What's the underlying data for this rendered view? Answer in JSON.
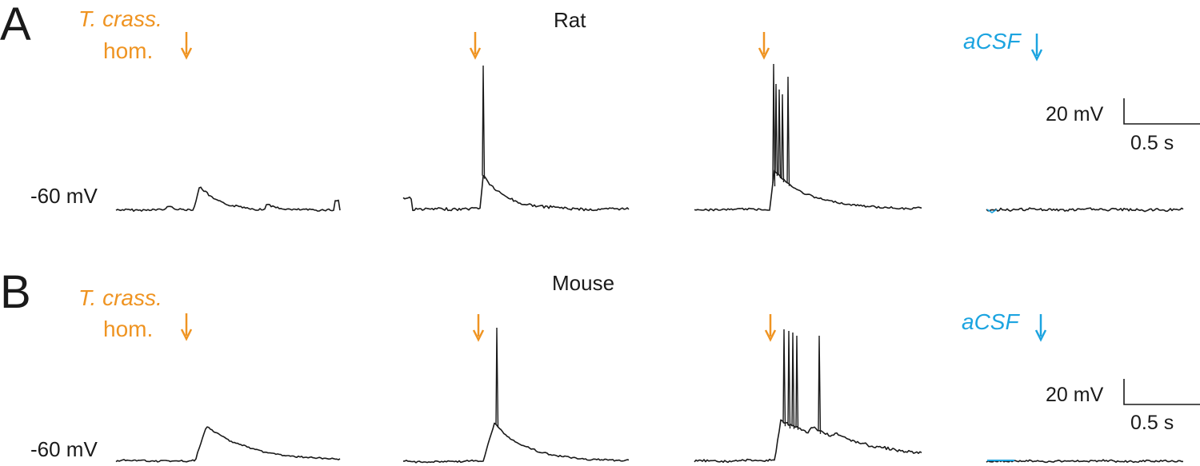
{
  "colors": {
    "trace": "#1a1a1a",
    "homogenate": "#ef9422",
    "acsf": "#1ca4e0"
  },
  "panels": [
    {
      "letter": "A",
      "species": "Rat",
      "stim_label_line1": "T. crass.",
      "stim_label_line2": "hom.",
      "control_label": "aCSF",
      "baseline_label": "-60 mV",
      "scale_v": "20 mV",
      "scale_t": "0.5 s",
      "traces": [
        {
          "condition": "T. crass. hom.",
          "spikes": 0
        },
        {
          "condition": "T. crass. hom.",
          "spikes": 1
        },
        {
          "condition": "T. crass. hom.",
          "spikes": 5
        },
        {
          "condition": "aCSF",
          "spikes": 0
        }
      ]
    },
    {
      "letter": "B",
      "species": "Mouse",
      "stim_label_line1": "T. crass.",
      "stim_label_line2": "hom.",
      "control_label": "aCSF",
      "baseline_label": "-60 mV",
      "scale_v": "20 mV",
      "scale_t": "0.5 s",
      "traces": [
        {
          "condition": "T. crass. hom.",
          "spikes": 0
        },
        {
          "condition": "T. crass. hom.",
          "spikes": 1
        },
        {
          "condition": "T. crass. hom.",
          "spikes": 5
        },
        {
          "condition": "aCSF",
          "spikes": 0
        }
      ]
    }
  ],
  "icons": {
    "stimulus_arrow": "down-arrow-icon"
  }
}
